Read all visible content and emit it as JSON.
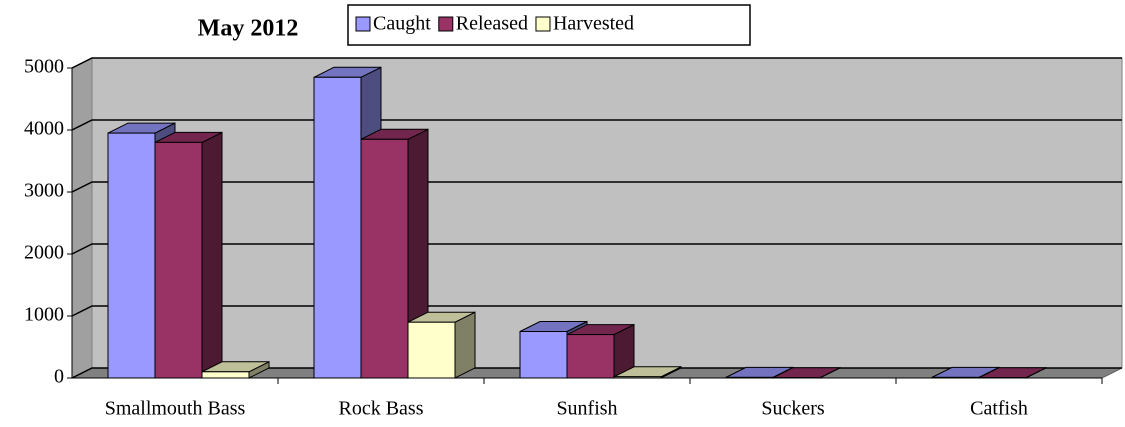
{
  "chart_data": {
    "type": "bar3d",
    "title": "May 2012",
    "categories": [
      "Smallmouth Bass",
      "Rock Bass",
      "Sunfish",
      "Suckers",
      "Catfish"
    ],
    "series": [
      {
        "name": "Caught",
        "color": "#9999ff",
        "values": [
          3950,
          4850,
          750,
          10,
          10
        ]
      },
      {
        "name": "Released",
        "color": "#993366",
        "values": [
          3800,
          3850,
          700,
          5,
          5
        ]
      },
      {
        "name": "Harvested",
        "color": "#ffffcc",
        "values": [
          100,
          900,
          20,
          0,
          0
        ]
      }
    ],
    "ylim": [
      0,
      5000
    ],
    "yticks": [
      0,
      1000,
      2000,
      3000,
      4000,
      5000
    ],
    "grid": true
  }
}
